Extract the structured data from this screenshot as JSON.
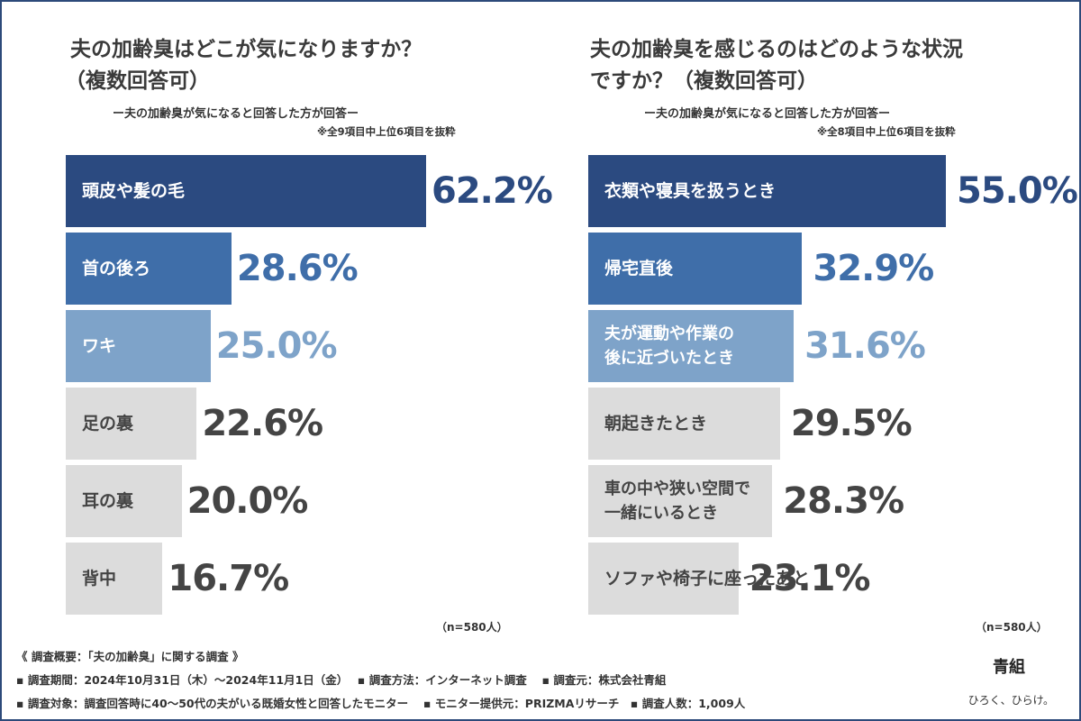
{
  "chart_data": [
    {
      "type": "bar",
      "title_line1": "夫の加齢臭はどこが気になりますか？",
      "title_line2": "（複数回答可）",
      "subtitle": "ー夫の加齢臭が気になると回答した方が回答ー",
      "note": "※全9項目中上位6項目を抜粋",
      "n_label": "（n=580人）",
      "categories": [
        "頭皮や髪の毛",
        "首の後ろ",
        "ワキ",
        "足の裏",
        "耳の裏",
        "背中"
      ],
      "values": [
        62.2,
        28.6,
        25.0,
        22.6,
        20.0,
        16.7
      ],
      "value_labels": [
        "62.2%",
        "28.6%",
        "25.0%",
        "22.6%",
        "20.0%",
        "16.7%"
      ],
      "max": 62.2,
      "colors": [
        "#2b4a80",
        "#3f6ea9",
        "#7ea3c9",
        "#dcdcdc",
        "#dcdcdc",
        "#dcdcdc"
      ],
      "value_colors": [
        "#2b4a80",
        "#3f6ea9",
        "#7ea3c9",
        "#444444",
        "#444444",
        "#444444"
      ]
    },
    {
      "type": "bar",
      "title_line1": "夫の加齢臭を感じるのはどのような状況",
      "title_line2": "ですか？（複数回答可）",
      "subtitle": "ー夫の加齢臭が気になると回答した方が回答ー",
      "note": "※全8項目中上位6項目を抜粋",
      "n_label": "（n=580人）",
      "categories": [
        "衣類や寝具を扱うとき",
        "帰宅直後",
        "夫が運動や作業の後に近づいたとき",
        "朝起きたとき",
        "車の中や狭い空間で一緒にいるとき",
        "ソファや椅子に座ったあと"
      ],
      "category_lines": [
        [
          "衣類や寝具を扱うとき"
        ],
        [
          "帰宅直後"
        ],
        [
          "夫が運動や作業の",
          "後に近づいたとき"
        ],
        [
          "朝起きたとき"
        ],
        [
          "車の中や狭い空間で",
          "一緒にいるとき"
        ],
        [
          "ソファや椅子に座ったあと"
        ]
      ],
      "values": [
        55.0,
        32.9,
        31.6,
        29.5,
        28.3,
        23.1
      ],
      "value_labels": [
        "55.0%",
        "32.9%",
        "31.6%",
        "29.5%",
        "28.3%",
        "23.1%"
      ],
      "max": 55.0,
      "colors": [
        "#2b4a80",
        "#3f6ea9",
        "#7ea3c9",
        "#dcdcdc",
        "#dcdcdc",
        "#dcdcdc"
      ],
      "value_colors": [
        "#2b4a80",
        "#3f6ea9",
        "#7ea3c9",
        "#444444",
        "#444444",
        "#444444"
      ]
    }
  ],
  "footer": {
    "line1": "《 調査概要：「夫の加齢臭」に関する調査 》",
    "line2": "▪ 調査期間：2024年10月31日（木）～2024年11月1日（金）　 ▪ 調査方法：インターネット調査　 ▪ 調査元：株式会社青組",
    "line3": "▪ 調査対象：調査回答時に40～50代の夫がいる既婚女性と回答したモニター　 ▪ モニター提供元：PRIZMAリサーチ　▪ 調査人数：1,009人"
  },
  "brand": {
    "logo": "青組",
    "tagline": "ひろく、ひらけ。"
  }
}
